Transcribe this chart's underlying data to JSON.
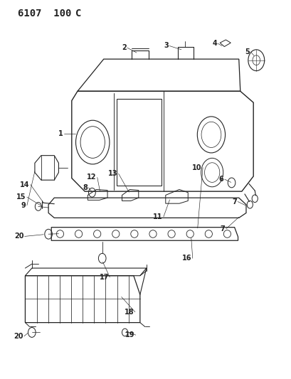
{
  "title": "6107  100 C",
  "bg_color": "#ffffff",
  "line_color": "#222222",
  "title_fontsize": 10,
  "label_fontsize": 7,
  "figsize": [
    4.1,
    5.33
  ],
  "dpi": 100
}
